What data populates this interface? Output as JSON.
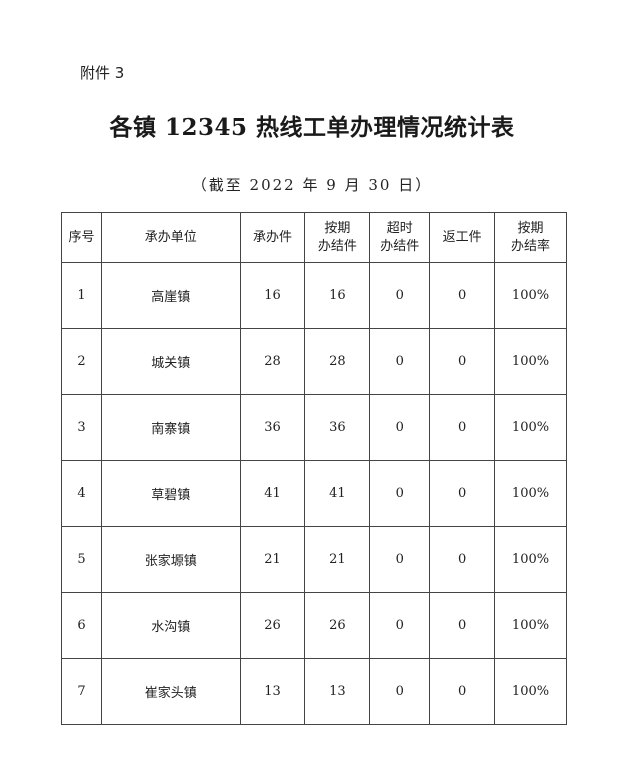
{
  "attachment_label": "附件 3",
  "title": "各镇 12345 热线工单办理情况统计表",
  "subtitle": "（截至 2022 年 9 月 30 日）",
  "table": {
    "headers": [
      [
        "序号"
      ],
      [
        "承办单位"
      ],
      [
        "承办件"
      ],
      [
        "按期",
        "办结件"
      ],
      [
        "超时",
        "办结件"
      ],
      [
        "返工件"
      ],
      [
        "按期",
        "办结率"
      ]
    ],
    "rows": [
      [
        "1",
        "高崖镇",
        "16",
        "16",
        "0",
        "0",
        "100%"
      ],
      [
        "2",
        "城关镇",
        "28",
        "28",
        "0",
        "0",
        "100%"
      ],
      [
        "3",
        "南寨镇",
        "36",
        "36",
        "0",
        "0",
        "100%"
      ],
      [
        "4",
        "草碧镇",
        "41",
        "41",
        "0",
        "0",
        "100%"
      ],
      [
        "5",
        "张家塬镇",
        "21",
        "21",
        "0",
        "0",
        "100%"
      ],
      [
        "6",
        "水沟镇",
        "26",
        "26",
        "0",
        "0",
        "100%"
      ],
      [
        "7",
        "崔家头镇",
        "13",
        "13",
        "0",
        "0",
        "100%"
      ]
    ]
  }
}
